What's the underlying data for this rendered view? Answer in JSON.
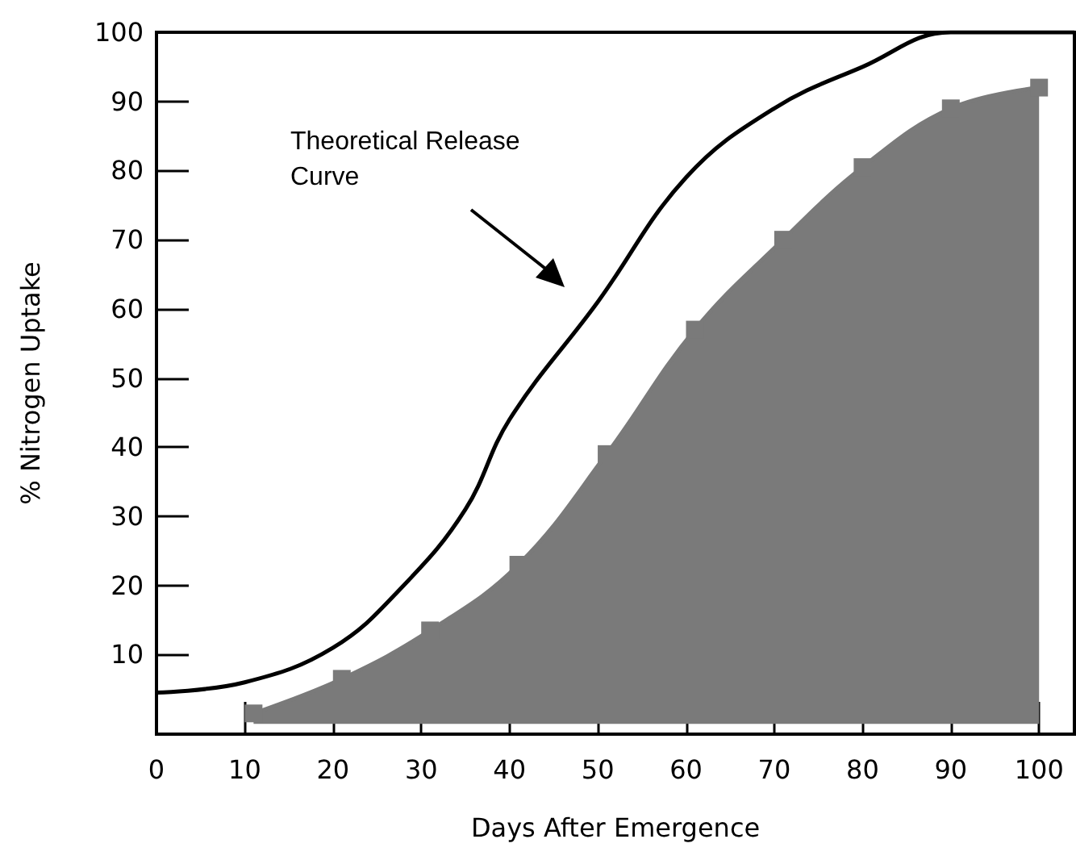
{
  "chart_data": {
    "type": "line",
    "xlabel": "Days After Emergence",
    "ylabel": "% Nitrogen Uptake",
    "xlim": [
      0,
      104
    ],
    "ylim": [
      -1.5,
      100
    ],
    "xticks": [
      0,
      10,
      20,
      30,
      40,
      50,
      60,
      70,
      80,
      90,
      100
    ],
    "yticks": [
      10,
      20,
      30,
      40,
      50,
      60,
      70,
      80,
      90,
      100
    ],
    "series": [
      {
        "color": "#000000",
        "x": [
          0,
          10,
          20,
          28,
          35,
          40,
          50,
          60,
          70,
          80,
          90,
          104
        ],
        "values": [
          4.5,
          6,
          11,
          20,
          31,
          44,
          61,
          79,
          89,
          95,
          100,
          100
        ]
      },
      {
        "type": "area",
        "color": "#7a7a7a",
        "marker": "square",
        "x": [
          11,
          21,
          31,
          41,
          51,
          61,
          71,
          80,
          90,
          100
        ],
        "values": [
          1.5,
          6.5,
          13.5,
          23,
          39,
          57,
          70,
          80.5,
          89,
          92
        ]
      }
    ],
    "annotations": [
      "Theoretical Release Curve"
    ],
    "grid": false
  }
}
